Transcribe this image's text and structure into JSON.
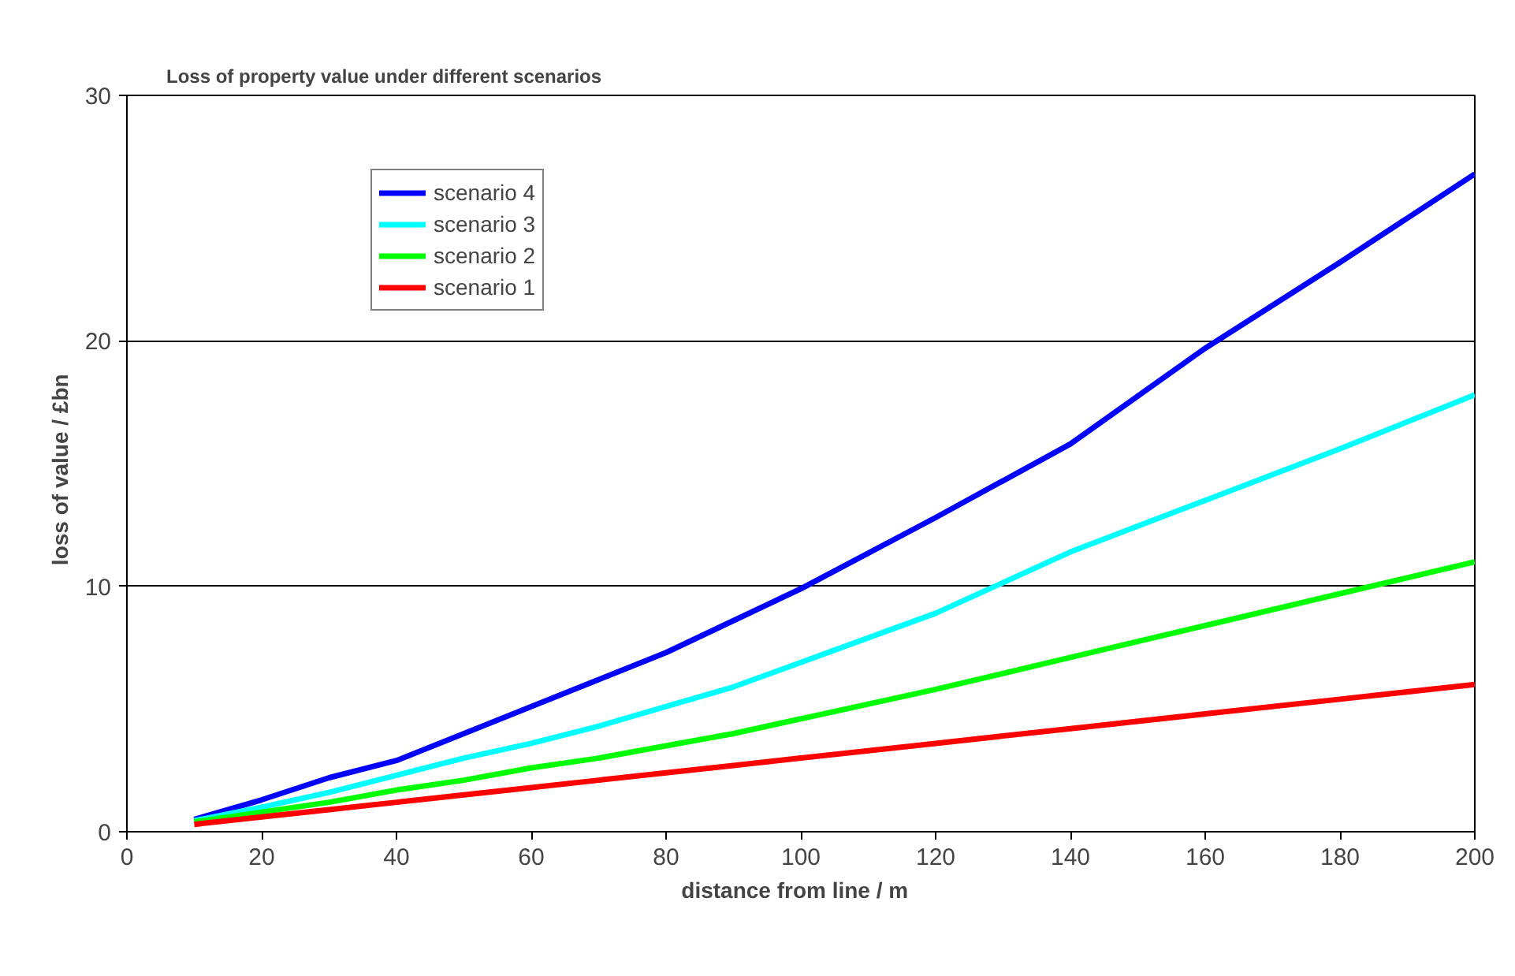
{
  "chart_data": {
    "type": "line",
    "title": "Loss of property value under different scenarios",
    "xlabel": "distance from line  /  m",
    "ylabel": "loss of value  /  £bn",
    "x": [
      10,
      20,
      30,
      40,
      50,
      60,
      70,
      80,
      90,
      100,
      120,
      140,
      160,
      180,
      200
    ],
    "series": [
      {
        "name": "scenario 4",
        "color": "#0000ff",
        "values": [
          0.5,
          1.3,
          2.2,
          2.9,
          4.0,
          5.1,
          6.2,
          7.3,
          8.6,
          9.9,
          12.8,
          15.8,
          19.7,
          23.2,
          26.8
        ]
      },
      {
        "name": "scenario 3",
        "color": "#00ffff",
        "values": [
          0.45,
          1.0,
          1.6,
          2.3,
          3.0,
          3.6,
          4.3,
          5.1,
          5.9,
          6.9,
          8.9,
          11.4,
          13.5,
          15.6,
          17.8
        ]
      },
      {
        "name": "scenario 2",
        "color": "#00ff00",
        "values": [
          0.4,
          0.8,
          1.2,
          1.7,
          2.1,
          2.6,
          3.0,
          3.5,
          4.0,
          4.6,
          5.8,
          7.1,
          8.4,
          9.7,
          11.0
        ]
      },
      {
        "name": "scenario 1",
        "color": "#ff0000",
        "values": [
          0.3,
          0.6,
          0.9,
          1.2,
          1.5,
          1.8,
          2.1,
          2.4,
          2.7,
          3.0,
          3.6,
          4.2,
          4.8,
          5.4,
          6.0
        ]
      }
    ],
    "xlim": [
      0,
      200
    ],
    "xticks": [
      0,
      20,
      40,
      60,
      80,
      100,
      120,
      140,
      160,
      180,
      200
    ],
    "ylim": [
      0,
      30
    ],
    "yticks": [
      0,
      10,
      20,
      30
    ],
    "grid": "y",
    "legend": "top left",
    "marker": "none",
    "line_style": "solid"
  }
}
